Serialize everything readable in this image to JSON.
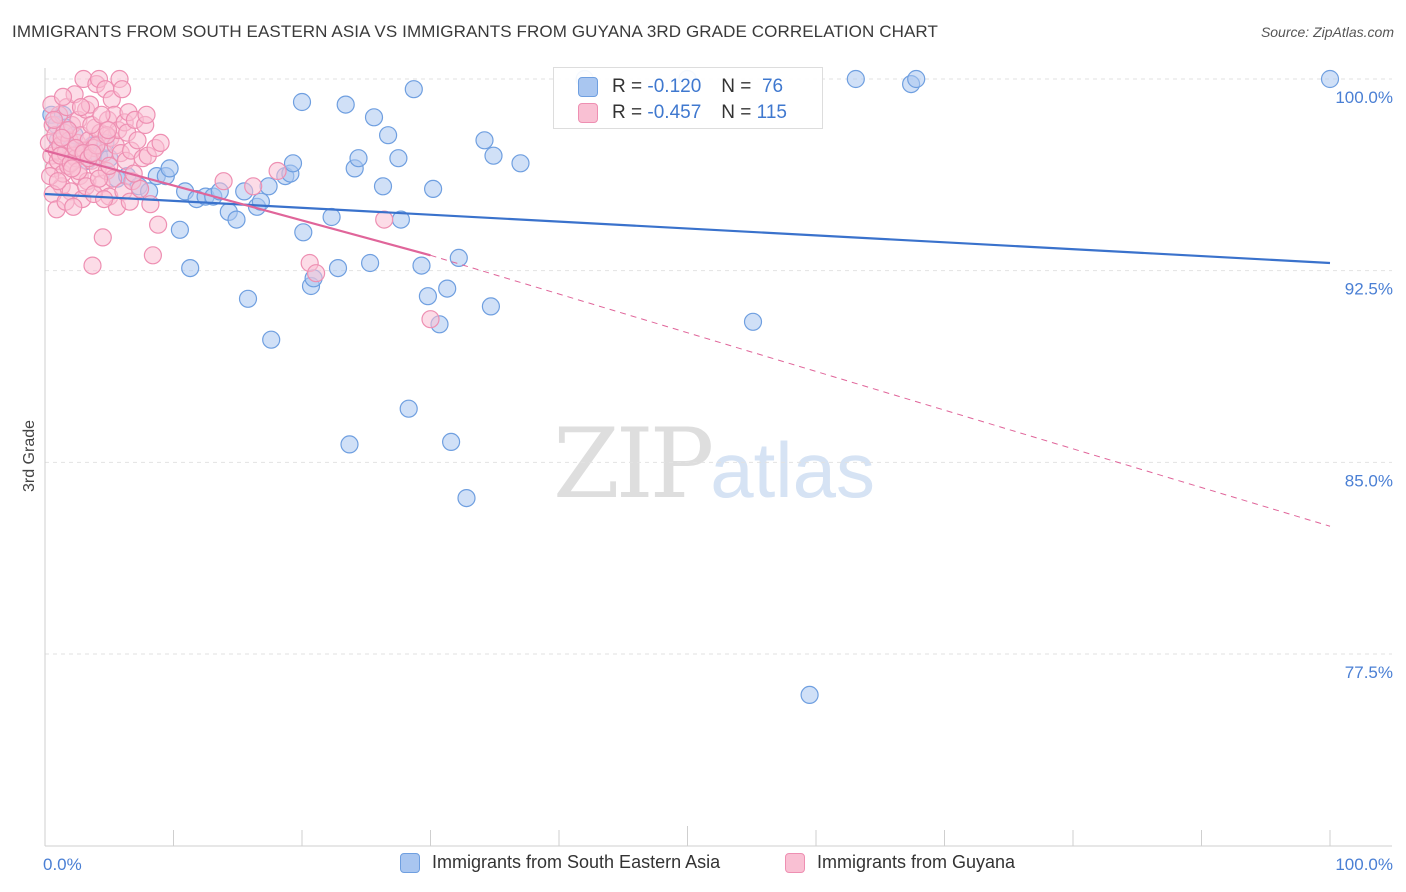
{
  "title": "IMMIGRANTS FROM SOUTH EASTERN ASIA VS IMMIGRANTS FROM GUYANA 3RD GRADE CORRELATION CHART",
  "source": "Source: ZipAtlas.com",
  "watermark": {
    "zip": "ZIP",
    "atlas": "atlas"
  },
  "stats": [
    {
      "r_label": "R =",
      "r_value": "-0.120",
      "n_label": "N =",
      "n_value": "76",
      "color": "#a9c6f0",
      "border": "#6f9fe0"
    },
    {
      "r_label": "R =",
      "r_value": "-0.457",
      "n_label": "N =",
      "n_value": "115",
      "color": "#f9c0d3",
      "border": "#ee8fb2"
    }
  ],
  "chart_data": {
    "type": "scatter",
    "title": "IMMIGRANTS FROM SOUTH EASTERN ASIA VS IMMIGRANTS FROM GUYANA 3RD GRADE CORRELATION CHART",
    "xlabel": "",
    "ylabel": "3rd Grade",
    "xlim": [
      0,
      100
    ],
    "ylim": [
      70,
      100.8
    ],
    "y_ticks": [
      {
        "value": 100.0,
        "label": "100.0%"
      },
      {
        "value": 92.5,
        "label": "92.5%"
      },
      {
        "value": 85.0,
        "label": "85.0%"
      },
      {
        "value": 77.5,
        "label": "77.5%"
      }
    ],
    "x_tick_labels": {
      "min": "0.0%",
      "max": "100.0%"
    },
    "x_minor_ticks": [
      0,
      10,
      20,
      30,
      40,
      50,
      60,
      70,
      80,
      90,
      100
    ],
    "series": [
      {
        "name": "Immigrants from South Eastern Asia",
        "color": "#a9c6f0",
        "edge": "#6f9fe0",
        "trend": {
          "x": [
            0,
            100
          ],
          "y": [
            95.5,
            92.8
          ],
          "color": "#3a72cc"
        },
        "points": [
          [
            0.5,
            98.6
          ],
          [
            0.9,
            98.2
          ],
          [
            1.4,
            98.6
          ],
          [
            1.6,
            98.1
          ],
          [
            2.3,
            97.8
          ],
          [
            2.8,
            97.2
          ],
          [
            3.3,
            96.8
          ],
          [
            3.7,
            97.4
          ],
          [
            4.2,
            97.0
          ],
          [
            5.0,
            96.9
          ],
          [
            5.6,
            96.1
          ],
          [
            6.4,
            96.2
          ],
          [
            7.3,
            95.8
          ],
          [
            8.1,
            95.6
          ],
          [
            8.7,
            96.2
          ],
          [
            9.4,
            96.2
          ],
          [
            9.7,
            96.5
          ],
          [
            10.5,
            94.1
          ],
          [
            10.9,
            95.6
          ],
          [
            11.3,
            92.6
          ],
          [
            11.8,
            95.3
          ],
          [
            12.5,
            95.4
          ],
          [
            13.1,
            95.4
          ],
          [
            13.6,
            95.6
          ],
          [
            14.3,
            94.8
          ],
          [
            14.9,
            94.5
          ],
          [
            15.5,
            95.6
          ],
          [
            15.8,
            91.4
          ],
          [
            16.5,
            95.0
          ],
          [
            16.8,
            95.2
          ],
          [
            17.4,
            95.8
          ],
          [
            17.6,
            89.8
          ],
          [
            18.7,
            96.2
          ],
          [
            19.1,
            96.3
          ],
          [
            19.3,
            96.7
          ],
          [
            20.1,
            94.0
          ],
          [
            20.0,
            99.1
          ],
          [
            20.7,
            91.9
          ],
          [
            20.9,
            92.2
          ],
          [
            22.3,
            94.6
          ],
          [
            22.8,
            92.6
          ],
          [
            23.4,
            99.0
          ],
          [
            23.7,
            85.7
          ],
          [
            24.1,
            96.5
          ],
          [
            24.4,
            96.9
          ],
          [
            25.3,
            92.8
          ],
          [
            25.6,
            98.5
          ],
          [
            26.3,
            95.8
          ],
          [
            26.7,
            97.8
          ],
          [
            27.5,
            96.9
          ],
          [
            27.7,
            94.5
          ],
          [
            28.3,
            87.1
          ],
          [
            28.7,
            99.6
          ],
          [
            29.3,
            92.7
          ],
          [
            29.8,
            91.5
          ],
          [
            30.2,
            95.7
          ],
          [
            30.7,
            90.4
          ],
          [
            31.3,
            91.8
          ],
          [
            31.6,
            85.8
          ],
          [
            32.2,
            93.0
          ],
          [
            32.8,
            83.6
          ],
          [
            34.2,
            97.6
          ],
          [
            34.7,
            91.1
          ],
          [
            34.9,
            97.0
          ],
          [
            37.0,
            96.7
          ],
          [
            42.0,
            100.0
          ],
          [
            50.0,
            100.0
          ],
          [
            55.1,
            90.5
          ],
          [
            59.5,
            75.9
          ],
          [
            63.1,
            100.0
          ],
          [
            67.4,
            99.8
          ],
          [
            67.8,
            100.0
          ],
          [
            100.0,
            100.0
          ],
          [
            1.0,
            97.6
          ],
          [
            2.0,
            97.3
          ],
          [
            4.7,
            97.5
          ]
        ]
      },
      {
        "name": "Immigrants from Guyana",
        "color": "#f9c0d3",
        "edge": "#ee8fb2",
        "trend": {
          "x": [
            0,
            30
          ],
          "y": [
            97.2,
            93.1
          ],
          "color": "#e0659a",
          "dash_to": [
            100,
            82.5
          ]
        },
        "points": [
          [
            0.3,
            97.5
          ],
          [
            0.5,
            97.0
          ],
          [
            0.6,
            98.2
          ],
          [
            0.7,
            96.5
          ],
          [
            0.8,
            97.8
          ],
          [
            0.9,
            97.2
          ],
          [
            1.0,
            96.8
          ],
          [
            1.1,
            98.6
          ],
          [
            1.2,
            97.4
          ],
          [
            1.3,
            95.8
          ],
          [
            1.4,
            96.3
          ],
          [
            1.5,
            97.9
          ],
          [
            1.6,
            97.1
          ],
          [
            1.7,
            98.9
          ],
          [
            1.8,
            96.6
          ],
          [
            1.9,
            97.6
          ],
          [
            2.0,
            95.6
          ],
          [
            2.1,
            98.2
          ],
          [
            2.2,
            97.0
          ],
          [
            2.3,
            99.4
          ],
          [
            2.4,
            96.9
          ],
          [
            2.5,
            97.5
          ],
          [
            2.6,
            98.4
          ],
          [
            2.7,
            96.2
          ],
          [
            2.8,
            97.8
          ],
          [
            2.9,
            95.3
          ],
          [
            3.0,
            100.0
          ],
          [
            3.1,
            97.2
          ],
          [
            3.2,
            98.8
          ],
          [
            3.3,
            96.0
          ],
          [
            3.4,
            97.6
          ],
          [
            3.5,
            99.0
          ],
          [
            3.6,
            96.8
          ],
          [
            3.7,
            92.7
          ],
          [
            3.8,
            97.3
          ],
          [
            3.9,
            98.1
          ],
          [
            4.0,
            99.8
          ],
          [
            4.1,
            96.5
          ],
          [
            4.2,
            100.0
          ],
          [
            4.3,
            97.9
          ],
          [
            4.4,
            95.9
          ],
          [
            4.5,
            93.8
          ],
          [
            4.6,
            97.1
          ],
          [
            4.7,
            99.6
          ],
          [
            4.8,
            96.4
          ],
          [
            4.9,
            98.4
          ],
          [
            5.0,
            95.4
          ],
          [
            5.1,
            97.7
          ],
          [
            5.2,
            99.2
          ],
          [
            5.3,
            96.1
          ],
          [
            5.4,
            98.6
          ],
          [
            5.5,
            97.4
          ],
          [
            5.6,
            95.0
          ],
          [
            5.7,
            98.0
          ],
          [
            5.8,
            100.0
          ],
          [
            5.9,
            97.1
          ],
          [
            6.0,
            99.6
          ],
          [
            6.1,
            95.6
          ],
          [
            6.2,
            98.3
          ],
          [
            6.3,
            96.8
          ],
          [
            6.4,
            97.9
          ],
          [
            6.5,
            98.7
          ],
          [
            6.6,
            95.2
          ],
          [
            6.7,
            97.2
          ],
          [
            6.8,
            96.0
          ],
          [
            7.0,
            98.4
          ],
          [
            7.2,
            97.6
          ],
          [
            7.4,
            95.7
          ],
          [
            7.6,
            96.9
          ],
          [
            7.8,
            98.2
          ],
          [
            8.0,
            97.0
          ],
          [
            8.2,
            95.1
          ],
          [
            8.4,
            93.1
          ],
          [
            8.6,
            97.3
          ],
          [
            8.8,
            94.3
          ],
          [
            9.0,
            97.5
          ],
          [
            0.4,
            96.2
          ],
          [
            0.5,
            99.0
          ],
          [
            0.6,
            95.5
          ],
          [
            0.7,
            98.4
          ],
          [
            0.9,
            94.9
          ],
          [
            1.0,
            96.0
          ],
          [
            1.2,
            97.0
          ],
          [
            1.4,
            99.3
          ],
          [
            1.6,
            95.2
          ],
          [
            1.8,
            98.0
          ],
          [
            2.0,
            96.7
          ],
          [
            2.2,
            95.0
          ],
          [
            2.4,
            97.3
          ],
          [
            2.6,
            96.4
          ],
          [
            2.8,
            98.9
          ],
          [
            3.0,
            97.1
          ],
          [
            3.2,
            95.8
          ],
          [
            3.4,
            96.9
          ],
          [
            3.6,
            98.2
          ],
          [
            3.8,
            95.5
          ],
          [
            4.0,
            97.4
          ],
          [
            4.2,
            96.1
          ],
          [
            4.4,
            98.6
          ],
          [
            4.6,
            95.3
          ],
          [
            4.8,
            97.8
          ],
          [
            5.0,
            96.6
          ],
          [
            13.9,
            96.0
          ],
          [
            16.2,
            95.8
          ],
          [
            18.1,
            96.4
          ],
          [
            20.6,
            92.8
          ],
          [
            21.1,
            92.4
          ],
          [
            26.4,
            94.5
          ],
          [
            30.0,
            90.6
          ],
          [
            1.3,
            97.7
          ],
          [
            2.1,
            96.5
          ],
          [
            3.7,
            97.1
          ],
          [
            4.9,
            98.0
          ],
          [
            6.9,
            96.3
          ],
          [
            7.9,
            98.6
          ]
        ]
      }
    ],
    "legend": [
      {
        "label": "Immigrants from South Eastern Asia",
        "color": "#a9c6f0",
        "border": "#6f9fe0"
      },
      {
        "label": "Immigrants from Guyana",
        "color": "#f9c0d3",
        "border": "#ee8fb2"
      }
    ]
  }
}
